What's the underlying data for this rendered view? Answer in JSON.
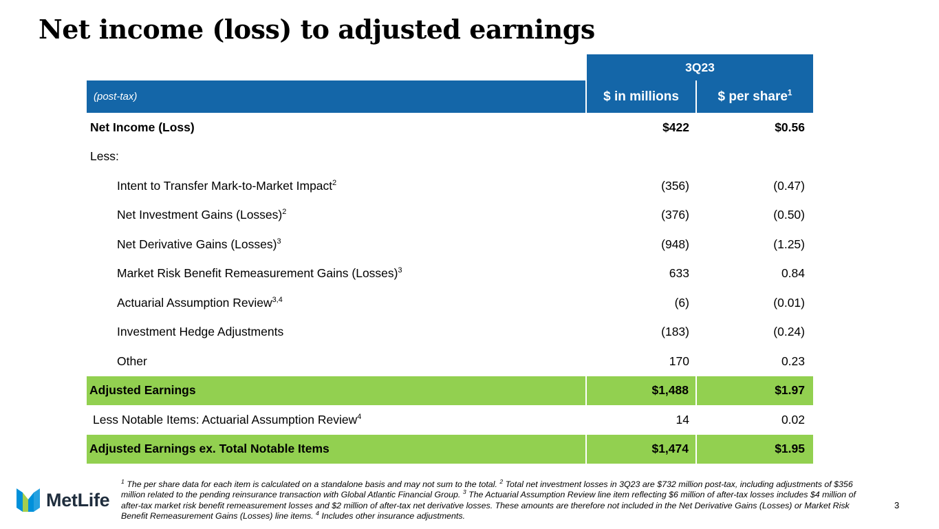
{
  "title": "Net income (loss) to adjusted earnings",
  "table": {
    "period": "3Q23",
    "basis_label": "(post-tax)",
    "col_millions": "$ in millions",
    "col_per_share": "$ per share",
    "col_per_share_fn": "1",
    "rows": [
      {
        "label": "Net Income (Loss)",
        "fn": "",
        "millions": "$422",
        "per_share": "$0.56"
      },
      {
        "label": "Less:",
        "fn": "",
        "millions": "",
        "per_share": ""
      },
      {
        "label": "Intent to Transfer Mark-to-Market Impact",
        "fn": "2",
        "millions": "(356)",
        "per_share": "(0.47)"
      },
      {
        "label": "Net Investment Gains (Losses)",
        "fn": "2",
        "millions": "(376)",
        "per_share": "(0.50)"
      },
      {
        "label": "Net Derivative Gains (Losses)",
        "fn": "3",
        "millions": "(948)",
        "per_share": "(1.25)"
      },
      {
        "label": "Market Risk Benefit Remeasurement Gains (Losses)",
        "fn": "3",
        "millions": "633",
        "per_share": "0.84"
      },
      {
        "label": "Actuarial Assumption Review",
        "fn": "3,4",
        "millions": "(6)",
        "per_share": "(0.01)"
      },
      {
        "label": "Investment Hedge Adjustments",
        "fn": "",
        "millions": "(183)",
        "per_share": "(0.24)"
      },
      {
        "label": "Other",
        "fn": "",
        "millions": "170",
        "per_share": "0.23"
      },
      {
        "label": "Adjusted Earnings",
        "fn": "",
        "millions": "$1,488",
        "per_share": "$1.97"
      },
      {
        "label": "Less Notable Items: Actuarial Assumption Review",
        "fn": "4",
        "millions": "14",
        "per_share": "0.02"
      },
      {
        "label": "Adjusted Earnings ex. Total Notable Items",
        "fn": "",
        "millions": "$1,474",
        "per_share": "$1.95"
      }
    ]
  },
  "footnotes": {
    "n1": "1",
    "t1": " The per share data for each item is calculated on a standalone basis and may not sum to the total. ",
    "n2": "2",
    "t2": " Total net investment losses in 3Q23 are $732 million post-tax, including adjustments of $356 million related to the pending reinsurance transaction with Global Atlantic Financial Group. ",
    "n3": "3",
    "t3": " The Actuarial Assumption Review line item reflecting $6 million of after-tax losses includes $4 million of after-tax market risk benefit remeasurement losses and $2 million of after-tax net derivative losses. These amounts are therefore not included in the Net Derivative Gains (Losses) or Market Risk Benefit Remeasurement Gains (Losses) line items. ",
    "n4": "4",
    "t4": " Includes other insurance adjustments."
  },
  "logo": {
    "wordmark": "MetLife"
  },
  "page_number": "3",
  "colors": {
    "header_blue": "#1466a8",
    "highlight_green": "#92d050",
    "logo_blue": "#0090da",
    "logo_green": "#a4ce4e",
    "logo_navy": "#1f2d3d"
  }
}
